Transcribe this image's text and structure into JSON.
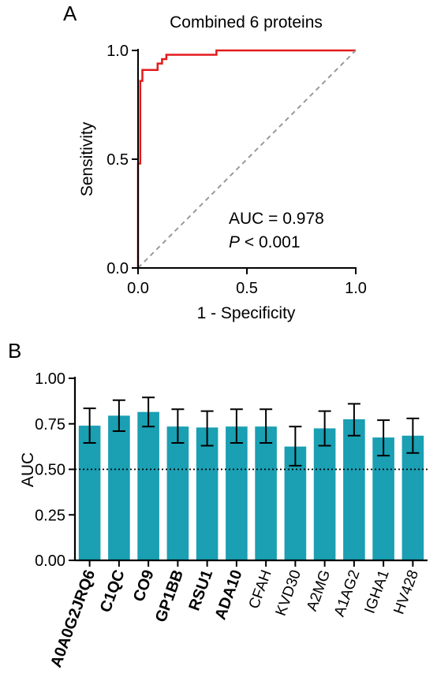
{
  "chart_data": [
    {
      "panel_label": "A",
      "type": "line",
      "title": "Combined 6 proteins",
      "xlabel": "1 - Specificity",
      "ylabel": "Sensitivity",
      "xlim": [
        0,
        1
      ],
      "ylim": [
        0,
        1
      ],
      "x_ticks": [
        "0.0",
        "0.5",
        "1.0"
      ],
      "y_ticks": [
        "0.0",
        "0.5",
        "1.0"
      ],
      "series": [
        {
          "color": "#e31a1c",
          "x": [
            0,
            0,
            0.01,
            0.01,
            0.02,
            0.02,
            0.09,
            0.09,
            0.11,
            0.11,
            0.13,
            0.13,
            0.15,
            0.15,
            0.36,
            0.36,
            1.0
          ],
          "y": [
            0,
            0.48,
            0.48,
            0.86,
            0.86,
            0.91,
            0.91,
            0.94,
            0.94,
            0.96,
            0.96,
            0.98,
            0.98,
            0.98,
            0.98,
            1.0,
            1.0
          ]
        },
        {
          "color": "#999999",
          "dashed": true,
          "x": [
            0,
            1
          ],
          "y": [
            0,
            1
          ]
        }
      ],
      "annotation": {
        "auc": "AUC = 0.978",
        "p_symbol": "P",
        "p_rest": " < 0.001"
      }
    },
    {
      "panel_label": "B",
      "type": "bar",
      "ylabel": "AUC",
      "ylim": [
        0,
        1
      ],
      "y_ticks": [
        "0.00",
        "0.25",
        "0.50",
        "0.75",
        "1.00"
      ],
      "reference_line": 0.5,
      "bar_color": "#1a9fb3",
      "categories": [
        "A0A0G2JRQ6",
        "C1QC",
        "CO9",
        "GP1BB",
        "RSU1",
        "ADA10",
        "CFAH",
        "KVD30",
        "A2MG",
        "A1AG2",
        "IGHA1",
        "HV428"
      ],
      "bold": [
        true,
        true,
        true,
        true,
        true,
        true,
        false,
        false,
        false,
        false,
        false,
        false
      ],
      "values": [
        0.74,
        0.795,
        0.815,
        0.735,
        0.73,
        0.735,
        0.735,
        0.625,
        0.725,
        0.775,
        0.675,
        0.685
      ],
      "err_low": [
        0.645,
        0.71,
        0.735,
        0.645,
        0.63,
        0.645,
        0.645,
        0.52,
        0.63,
        0.685,
        0.575,
        0.59
      ],
      "err_high": [
        0.835,
        0.88,
        0.895,
        0.83,
        0.82,
        0.83,
        0.83,
        0.735,
        0.82,
        0.86,
        0.77,
        0.78
      ]
    }
  ]
}
